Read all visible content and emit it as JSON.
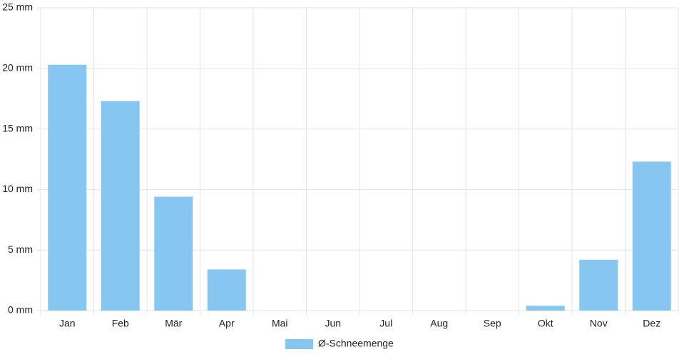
{
  "chart_data": {
    "type": "bar",
    "categories": [
      "Jan",
      "Feb",
      "Mär",
      "Apr",
      "Mai",
      "Jun",
      "Jul",
      "Aug",
      "Sep",
      "Okt",
      "Nov",
      "Dez"
    ],
    "series": [
      {
        "name": "Ø-Schneemenge",
        "color": "#88c6f2",
        "values": [
          20.3,
          17.3,
          9.4,
          3.4,
          0,
          0,
          0,
          0,
          0,
          0.4,
          4.2,
          12.3
        ]
      }
    ],
    "ylim": [
      0,
      25
    ],
    "yticks": [
      {
        "value": 0,
        "label": "0 mm"
      },
      {
        "value": 5,
        "label": "5 mm"
      },
      {
        "value": 10,
        "label": "10 mm"
      },
      {
        "value": 15,
        "label": "15 mm"
      },
      {
        "value": 20,
        "label": "20 mm"
      },
      {
        "value": 25,
        "label": "25 mm"
      }
    ],
    "grid": true,
    "legend": "bottom"
  }
}
